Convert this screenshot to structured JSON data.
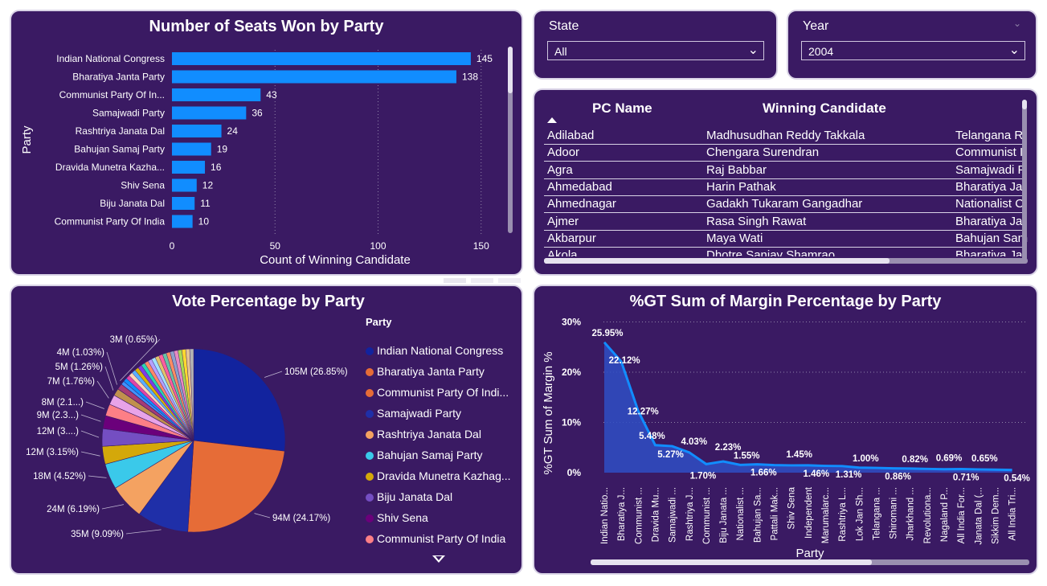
{
  "seats_chart": {
    "title": "Number of Seats Won by Party",
    "ylabel": "Party",
    "xlabel": "Count of Winning Candidate"
  },
  "state_slicer": {
    "label": "State",
    "value": "All"
  },
  "year_slicer": {
    "label": "Year",
    "value": "2004"
  },
  "table": {
    "headers": [
      "PC Name",
      "Winning Candidate",
      ""
    ],
    "rows": [
      [
        "Adilabad",
        "Madhusudhan Reddy Takkala",
        "Telangana R"
      ],
      [
        "Adoor",
        "Chengara Surendran",
        "Communist I"
      ],
      [
        "Agra",
        "Raj Babbar",
        "Samajwadi P"
      ],
      [
        "Ahmedabad",
        "Harin Pathak",
        "Bharatiya Ja"
      ],
      [
        "Ahmednagar",
        "Gadakh Tukaram Gangadhar",
        "Nationalist C"
      ],
      [
        "Ajmer",
        "Rasa Singh Rawat",
        "Bharatiya Ja"
      ],
      [
        "Akbarpur",
        "Maya Wati",
        "Bahujan Sam"
      ],
      [
        "Akola",
        "Dhotre Sanjay Shamrao",
        "Bharatiya Ja"
      ]
    ]
  },
  "pie_chart": {
    "title": "Vote Percentage by Party",
    "legend_title": "Party"
  },
  "margin_chart": {
    "title": "%GT Sum of Margin Percentage by Party",
    "ylabel": "%GT Sum of Margin %",
    "xlabel": "Party"
  },
  "chart_data": [
    {
      "type": "bar",
      "orientation": "horizontal",
      "categories": [
        "Indian National Congress",
        "Bharatiya Janta Party",
        "Communist Party Of In...",
        "Samajwadi Party",
        "Rashtriya Janata Dal",
        "Bahujan Samaj Party",
        "Dravida Munetra Kazha...",
        "Shiv Sena",
        "Biju Janata Dal",
        "Communist Party Of India"
      ],
      "values": [
        145,
        138,
        43,
        36,
        24,
        19,
        16,
        12,
        11,
        10
      ],
      "x_ticks": [
        0,
        50,
        100,
        150
      ],
      "xlim": [
        0,
        160
      ],
      "color": "#118dff"
    },
    {
      "type": "pie",
      "legend": [
        "Indian National Congress",
        "Bharatiya Janta Party",
        "Communist Party Of Indi...",
        "Samajwadi Party",
        "Rashtriya Janata Dal",
        "Bahujan Samaj Party",
        "Dravida Munetra Kazhag...",
        "Biju Janata Dal",
        "Shiv Sena",
        "Communist Party Of India"
      ],
      "colors": [
        "#12239e",
        "#e66c37",
        "#e66c37",
        "#1f2fa8",
        "#f4a261",
        "#3ac9ea",
        "#d4a80a",
        "#744ec2",
        "#6b007b",
        "#fd7f86"
      ],
      "slices": [
        {
          "value": 26.85,
          "label": "105M (26.85%)",
          "color": "#12239e"
        },
        {
          "value": 24.17,
          "label": "94M (24.17%)",
          "color": "#e66c37"
        },
        {
          "value": 9.09,
          "label": "35M (9.09%)",
          "color": "#1f2fa8"
        },
        {
          "value": 6.19,
          "label": "24M (6.19%)",
          "color": "#f4a261"
        },
        {
          "value": 4.52,
          "label": "18M (4.52%)",
          "color": "#3ac9ea"
        },
        {
          "value": 3.15,
          "label": "12M (3.15%)",
          "color": "#d4a80a"
        },
        {
          "value": 3.1,
          "label": "12M (3....)",
          "color": "#744ec2"
        },
        {
          "value": 2.3,
          "label": "9M (2.3...)",
          "color": "#6b007b"
        },
        {
          "value": 2.1,
          "label": "8M (2.1...)",
          "color": "#fd7f86"
        },
        {
          "value": 1.76,
          "label": "7M (1.76%)",
          "color": "#e8a3e8"
        },
        {
          "value": 1.26,
          "label": "5M (1.26%)",
          "color": "#c0904d"
        },
        {
          "value": 1.03,
          "label": "4M (1.03%)",
          "color": "#a43b76"
        },
        {
          "value": 0.65,
          "label": "3M (0.65%)",
          "color": "#4092ff"
        },
        {
          "value": 13.82,
          "label": "",
          "color": "#8c6bd8"
        }
      ]
    },
    {
      "type": "area",
      "categories": [
        "Indian Natio...",
        "Bharatiya J...",
        "Communist ...",
        "Dravida Mu...",
        "Samajwadi ...",
        "Rashtriya J...",
        "Communist ...",
        "Biju Janata ...",
        "Nationalist ...",
        "Bahujan Sa...",
        "Pattali Mak...",
        "Shiv Sena",
        "Independent",
        "Marumalarc...",
        "Rashtriya L...",
        "Lok Jan Sh...",
        "Telangana ...",
        "Shiromani ...",
        "Jharkhand ...",
        "Revolutiona...",
        "Nagaland P...",
        "All India For...",
        "Janata Dal (...",
        "Sikkim Dem...",
        "All India Tri..."
      ],
      "values": [
        25.95,
        22.12,
        12.27,
        5.48,
        5.27,
        4.03,
        1.7,
        2.23,
        1.55,
        1.66,
        1.5,
        1.45,
        1.46,
        1.35,
        1.31,
        1.0,
        0.95,
        0.86,
        0.82,
        0.75,
        0.69,
        0.71,
        0.65,
        0.6,
        0.54
      ],
      "data_labels": [
        "25.95%",
        "22.12%",
        "12.27%",
        "5.48%",
        "5.27%",
        "4.03%",
        "1.70%",
        "2.23%",
        "1.55%",
        "1.66%",
        "",
        "1.45%",
        "1.46%",
        "",
        "1.31%",
        "1.00%",
        "",
        "0.86%",
        "0.82%",
        "",
        "0.69%",
        "0.71%",
        "0.65%",
        "",
        "0.54%"
      ],
      "y_ticks": [
        "0%",
        "10%",
        "20%",
        "30%"
      ],
      "ylim": [
        0,
        30
      ],
      "color": "#118dff"
    }
  ]
}
